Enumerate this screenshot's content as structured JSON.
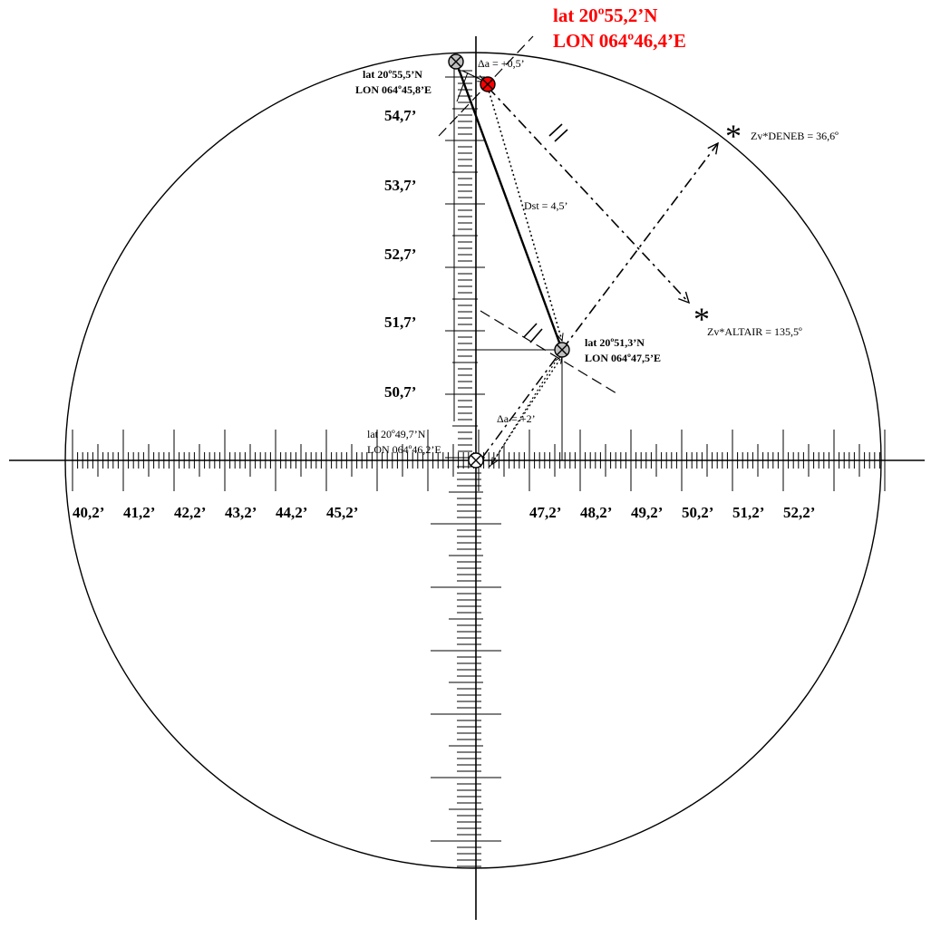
{
  "chart_data": {
    "type": "diagram",
    "longitude_scale": {
      "labels": [
        "40,2’",
        "41,2’",
        "42,2’",
        "43,2’",
        "44,2’",
        "45,2’",
        "47,2’",
        "48,2’",
        "49,2’",
        "50,2’",
        "51,2’",
        "52,2’"
      ]
    },
    "latitude_scale": {
      "labels": [
        "54,7’",
        "53,7’",
        "52,7’",
        "51,7’",
        "50,7’"
      ]
    },
    "positions": {
      "dead_reckoning_origin": {
        "lat": "lat 20º49,7’N",
        "lon": "LON 064º46,2’E"
      },
      "position_2": {
        "lat": "lat 20º51,3’N",
        "lon": "LON 064º47,5’E"
      },
      "position_3": {
        "lat": "lat 20º55,5’N",
        "lon": "LON 064º45,8’E"
      },
      "fix": {
        "lat": "lat 20º55,2’N",
        "lon": "LON 064º46,4’E",
        "color": "#ff0000"
      }
    },
    "stars": [
      {
        "label": "Zv*DENEB = 36,6º"
      },
      {
        "label": "Zv*ALTAIR = 135,5º"
      }
    ],
    "annotations": {
      "delta_a_1": "Δa = +0,5’",
      "delta_a_2": "Δa = +2’",
      "distance": "Dst = 4,5’"
    }
  }
}
